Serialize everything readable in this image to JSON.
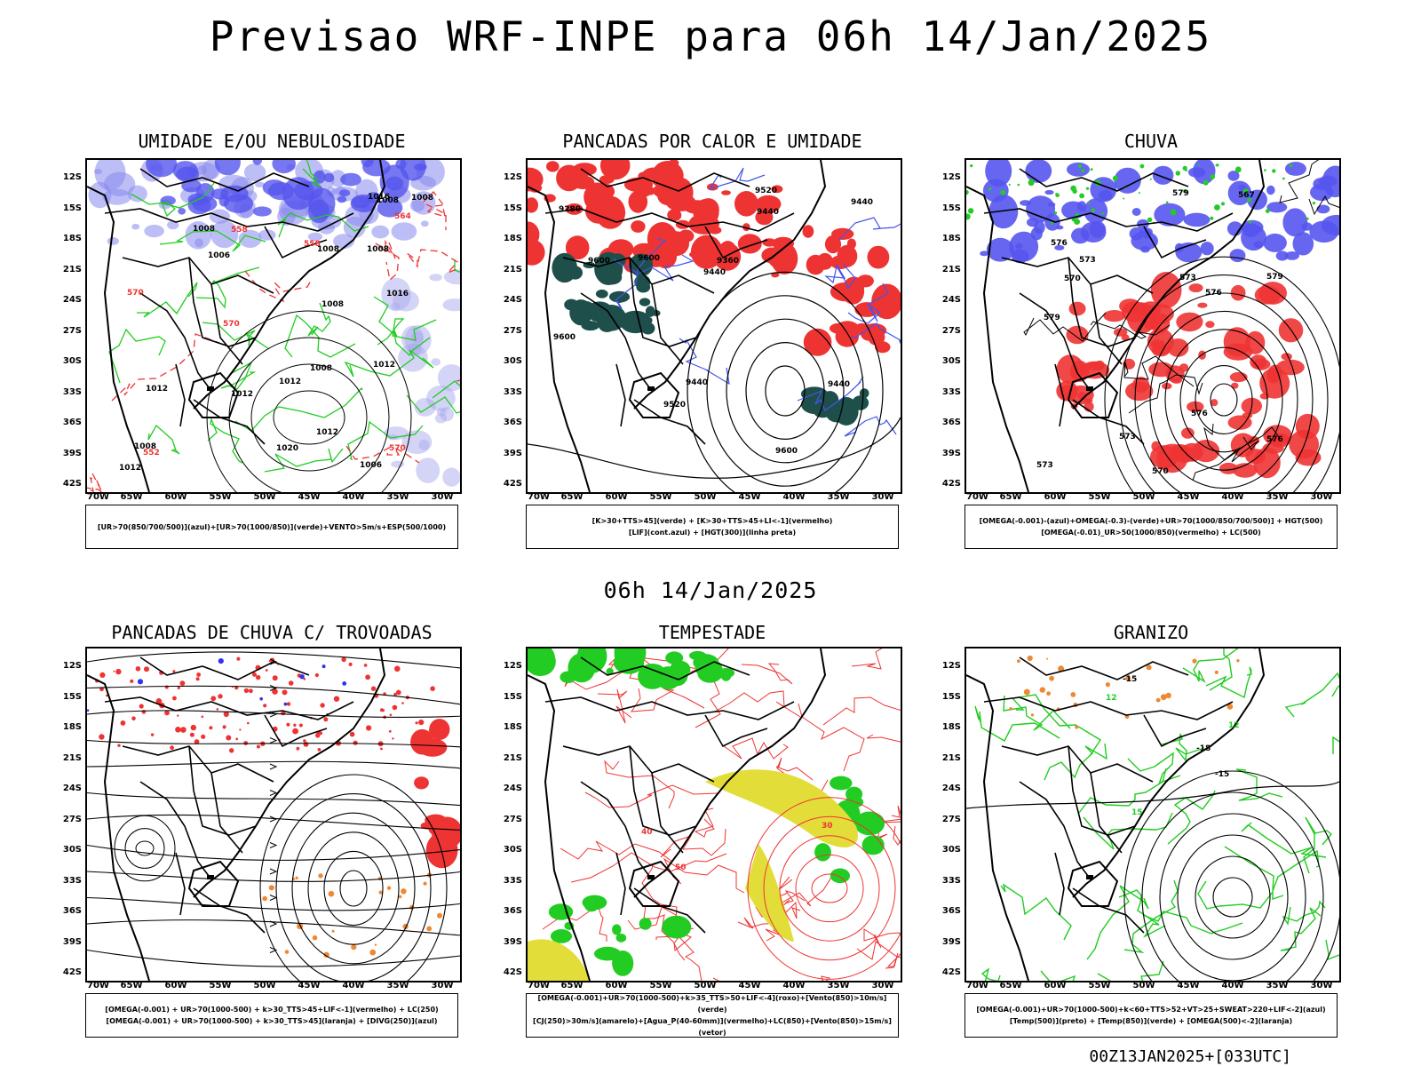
{
  "title": "Previsao WRF-INPE  para 06h 14/Jan/2025",
  "mid_label": "06h 14/Jan/2025",
  "footer": "00Z13JAN2025+[033UTC]",
  "lat_ticks": [
    "12S",
    "15S",
    "18S",
    "21S",
    "24S",
    "27S",
    "30S",
    "33S",
    "36S",
    "39S",
    "42S"
  ],
  "lon_ticks": [
    "70W",
    "65W",
    "60W",
    "55W",
    "50W",
    "45W",
    "40W",
    "35W",
    "30W"
  ],
  "colors": {
    "blue": "#5555ee",
    "red": "#ee3333",
    "green": "#22cc22",
    "darkteal": "#1f4f4a",
    "yellow": "#e3dd3a",
    "orange": "#ee8833",
    "black": "#000000"
  },
  "panels": [
    {
      "title": "UMIDADE E/OU NEBULOSIDADE",
      "legend": [
        "[UR>70(850/700/500)](azul)+[UR>70(1000/850)](verde)+VENTO>5m/s+ESP(500/1000)"
      ],
      "contour_labels": [
        "1008",
        "1008",
        "1008",
        "1012",
        "1008",
        "1020",
        "1016",
        "1006",
        "1012",
        "1012",
        "1012",
        "1008",
        "1008",
        "1012",
        "1016",
        "1012",
        "1008",
        "1008",
        "1006",
        "570",
        "570",
        "564",
        "570",
        "558",
        "552",
        "558"
      ]
    },
    {
      "title": "PANCADAS POR CALOR E UMIDADE",
      "legend": [
        "[K>30+TTS>45](verde) + [K>30+TTS>45+LI<-1](vermelho)",
        "[LIF](cont.azul) + [HGT(300)](linha preta)"
      ],
      "contour_labels": [
        "9600",
        "9600",
        "9520",
        "9440",
        "9520",
        "9440",
        "9600",
        "9440",
        "9360",
        "9280",
        "9440",
        "9440",
        "9600"
      ]
    },
    {
      "title": "CHUVA",
      "legend": [
        "[OMEGA(-0.001)-(azul)+OMEGA(-0.3)-(verde)+UR>70(1000/850/700/500)] + HGT(500)",
        "[OMEGA(-0.01)_UR>50(1000/850)(vermelho) + LC(500)"
      ],
      "contour_labels": [
        "576",
        "579",
        "579",
        "573",
        "576",
        "576",
        "573",
        "567",
        "570",
        "573",
        "570",
        "573",
        "576",
        "579"
      ]
    },
    {
      "title": "PANCADAS DE CHUVA C/ TROVOADAS",
      "legend": [
        "[OMEGA(-0.001) + UR>70(1000-500) + k>30_TTS>45+LIF<-1](vermelho) + LC(250)",
        "[OMEGA(-0.001) + UR>70(1000-500) + k>30_TTS>45](laranja) + [DIVG(250)](azul)"
      ],
      "contour_labels": []
    },
    {
      "title": "TEMPESTADE",
      "legend": [
        "[OMEGA(-0.001)+UR>70(1000-500)+k>35_TTS>50+LIF<-4](roxo)+[Vento(850)>10m/s](verde)",
        "[CJ(250)>30m/s](amarelo)+[Agua_P(40-60mm)](vermelho)+LC(850)+[Vento(850)>15m/s](vetor)"
      ],
      "contour_labels": [
        "50",
        "40",
        "30"
      ]
    },
    {
      "title": "GRANIZO",
      "legend": [
        "[OMEGA(-0.001)+UR>70(1000-500)+k<60+TTS>52+VT>25+SWEAT>220+LIF<-2](azul)",
        "[Temp(500)](preto) + [Temp(850)](verde) + [OMEGA(500)<-2](laranja)"
      ],
      "contour_labels": [
        "-15",
        "-18",
        "-15",
        "12",
        "15",
        "12"
      ]
    }
  ]
}
